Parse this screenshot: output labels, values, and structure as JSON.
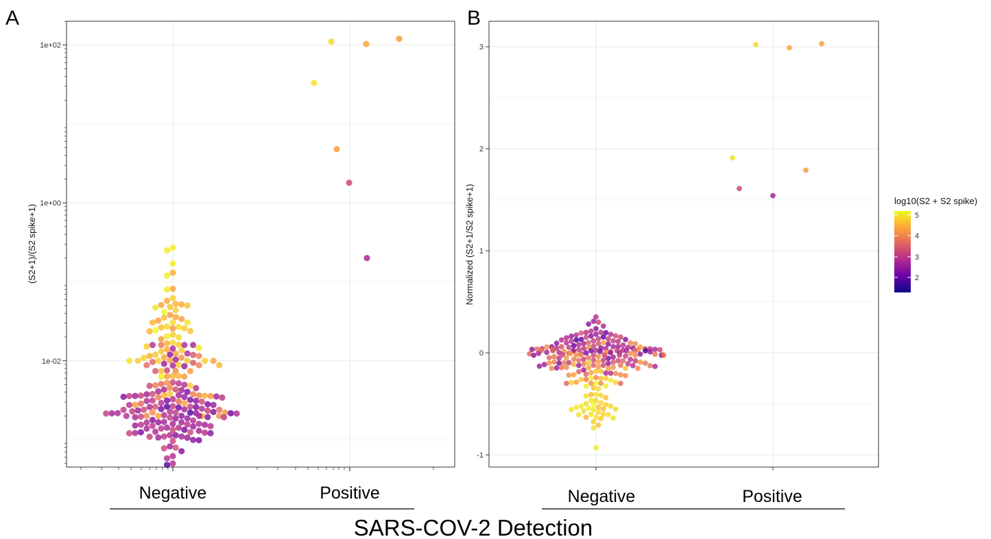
{
  "colors": {
    "grid": "#ebebeb",
    "panel_border": "#333333",
    "palette": [
      "#0d0887",
      "#6a00a8",
      "#b12a90",
      "#e16462",
      "#fca636",
      "#f0f921"
    ]
  },
  "figure": {
    "x_axis_title": "SARS-COV-2 Detection",
    "legend": {
      "title": "log10(S2 + S2 spike)",
      "labels": [
        "5",
        "4",
        "3",
        "2"
      ],
      "range": [
        1.4,
        5.3
      ]
    }
  },
  "chart_data": [
    {
      "type": "scatter",
      "panel_label": "A",
      "ylabel": "(S2+1)/(S2 spike+1)",
      "yscale": "log10",
      "ylim": [
        0.00045,
        200
      ],
      "yticks": [
        "1e-02",
        "1e+00",
        "1e+02"
      ],
      "ytick_values": [
        0.01,
        1,
        100
      ],
      "categories": [
        "Negative",
        "Positive"
      ],
      "grid": true,
      "legend": "right",
      "series": [
        {
          "group": "Negative",
          "count_estimate": 230,
          "y_range": [
            0.0005,
            0.3
          ],
          "color_scale": "log10(S2 + S2 spike)",
          "color_pattern": "low-ratio points mostly dark purple (log10 ~2.5-3.5); higher-ratio points orange to yellow (log10 ~4-5.3)"
        },
        {
          "group": "Positive",
          "points": [
            {
              "y": 110,
              "c": 5.0
            },
            {
              "y": 103,
              "c": 4.5
            },
            {
              "y": 120,
              "c": 4.4
            },
            {
              "y": 33,
              "c": 5.1
            },
            {
              "y": 4.8,
              "c": 4.4
            },
            {
              "y": 1.8,
              "c": 3.4
            },
            {
              "y": 0.2,
              "c": 2.9
            }
          ]
        }
      ]
    },
    {
      "type": "scatter",
      "panel_label": "B",
      "ylabel": "Normalized (S2+1/S2 spike+1)",
      "yscale": "linear",
      "ylim": [
        -1.12,
        3.25
      ],
      "yticks": [
        "-1",
        "0",
        "1",
        "2",
        "3"
      ],
      "ytick_values": [
        -1,
        0,
        1,
        2,
        3
      ],
      "categories": [
        "Negative",
        "Positive"
      ],
      "grid": true,
      "legend": "right",
      "series": [
        {
          "group": "Negative",
          "count_estimate": 230,
          "y_range": [
            -0.93,
            0.36
          ],
          "color_scale": "log10(S2 + S2 spike)",
          "color_pattern": "points above 0 mostly purple (log10 ~2.5-3.5); points below 0 orange to yellow (log10 ~4-5.3)"
        },
        {
          "group": "Positive",
          "points": [
            {
              "y": 3.02,
              "c": 5.0
            },
            {
              "y": 2.99,
              "c": 4.5
            },
            {
              "y": 3.03,
              "c": 4.4
            },
            {
              "y": 1.91,
              "c": 5.1
            },
            {
              "y": 1.79,
              "c": 4.4
            },
            {
              "y": 1.61,
              "c": 3.4
            },
            {
              "y": 1.54,
              "c": 2.9
            }
          ]
        }
      ]
    }
  ]
}
